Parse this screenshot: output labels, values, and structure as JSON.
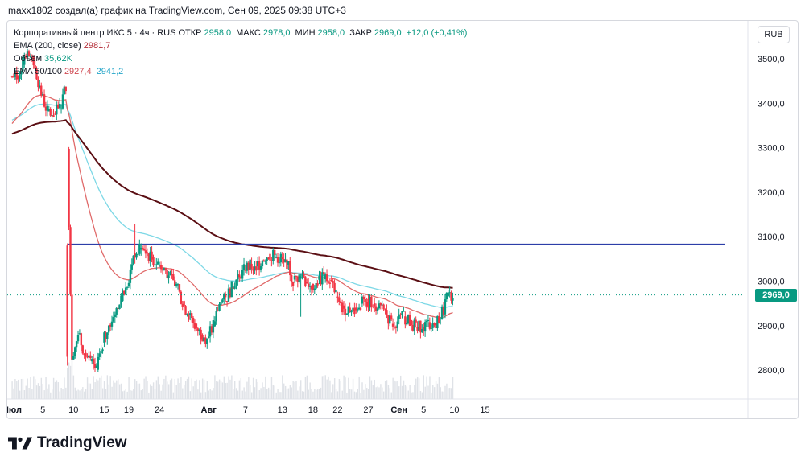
{
  "caption": "maxx1802 создал(а) график на TradingView.com, Сен 09, 2025 09:38 UTC+3",
  "legend": {
    "symbol": "Корпоративный центр ИКС 5 · 4ч · RUS",
    "open_label": "ОТКР",
    "open_value": "2958,0",
    "high_label": "МАКС",
    "high_value": "2978,0",
    "low_label": "МИН",
    "low_value": "2958,0",
    "close_label": "ЗАКР",
    "close_value": "2969,0",
    "change_value": "+12,0 (+0,41%)",
    "ema200_label": "EMA (200, close)",
    "ema200_value": "2981,7",
    "volume_label": "Объём",
    "volume_value": "35,62K",
    "ema50_100_label": "EMA 50/100",
    "ema50_value": "2927,4",
    "ema100_value": "2941,2"
  },
  "currency": "RUB",
  "last_price_label": "2969,0",
  "brand": {
    "name": "TradingView",
    "logo_icon": "tradingview-logo-icon"
  },
  "colors": {
    "up": "#089981",
    "down": "#f23645",
    "ema200": "#5b0f14",
    "ema50": "#e06a6a",
    "ema100": "#7dd8e6",
    "hline": "#2d3ea8",
    "volume": "#dfe2e7"
  },
  "chart_data": {
    "type": "candlestick",
    "timeframe": "4h",
    "x_ticks": [
      "Июл",
      "5",
      "10",
      "15",
      "19",
      "24",
      "Авг",
      "7",
      "13",
      "18",
      "22",
      "27",
      "Сен",
      "5",
      "10",
      "15"
    ],
    "y_ticks": [
      "3500,0",
      "3400,0",
      "3300,0",
      "3200,0",
      "3100,0",
      "3000,0",
      "2900,0",
      "2800,0"
    ],
    "ylim": [
      2735,
      3585
    ],
    "horizontal_line": 3083,
    "last_price": 2969.0,
    "close_series": [
      {
        "date": "2025-06-30",
        "close": 3460
      },
      {
        "date": "2025-07-01",
        "close": 3490
      },
      {
        "date": "2025-07-02",
        "close": 3505
      },
      {
        "date": "2025-07-03",
        "close": 3480
      },
      {
        "date": "2025-07-04",
        "close": 3420
      },
      {
        "date": "2025-07-05",
        "close": 3380
      },
      {
        "date": "2025-07-06",
        "close": 3375
      },
      {
        "date": "2025-07-07",
        "close": 3390
      },
      {
        "date": "2025-07-08",
        "close": 3440
      },
      {
        "date": "2025-07-09",
        "close": 2830
      },
      {
        "date": "2025-07-10",
        "close": 2880
      },
      {
        "date": "2025-07-11",
        "close": 2840
      },
      {
        "date": "2025-07-12",
        "close": 2815
      },
      {
        "date": "2025-07-13",
        "close": 2800
      },
      {
        "date": "2025-07-14",
        "close": 2860
      },
      {
        "date": "2025-07-15",
        "close": 2900
      },
      {
        "date": "2025-07-16",
        "close": 2930
      },
      {
        "date": "2025-07-17",
        "close": 2960
      },
      {
        "date": "2025-07-18",
        "close": 2985
      },
      {
        "date": "2025-07-19",
        "close": 3060
      },
      {
        "date": "2025-07-20",
        "close": 3075
      },
      {
        "date": "2025-07-21",
        "close": 3065
      },
      {
        "date": "2025-07-22",
        "close": 3050
      },
      {
        "date": "2025-07-23",
        "close": 3040
      },
      {
        "date": "2025-07-24",
        "close": 3030
      },
      {
        "date": "2025-07-25",
        "close": 3010
      },
      {
        "date": "2025-07-26",
        "close": 2990
      },
      {
        "date": "2025-07-27",
        "close": 2950
      },
      {
        "date": "2025-07-28",
        "close": 2925
      },
      {
        "date": "2025-07-29",
        "close": 2900
      },
      {
        "date": "2025-07-30",
        "close": 2880
      },
      {
        "date": "2025-07-31",
        "close": 2870
      },
      {
        "date": "2025-08-01",
        "close": 2900
      },
      {
        "date": "2025-08-02",
        "close": 2950
      },
      {
        "date": "2025-08-03",
        "close": 2960
      },
      {
        "date": "2025-08-04",
        "close": 2985
      },
      {
        "date": "2025-08-05",
        "close": 3010
      },
      {
        "date": "2025-08-06",
        "close": 3030
      },
      {
        "date": "2025-08-07",
        "close": 3035
      },
      {
        "date": "2025-08-08",
        "close": 3030
      },
      {
        "date": "2025-08-09",
        "close": 3050
      },
      {
        "date": "2025-08-10",
        "close": 3060
      },
      {
        "date": "2025-08-11",
        "close": 3055
      },
      {
        "date": "2025-08-12",
        "close": 3050
      },
      {
        "date": "2025-08-13",
        "close": 3040
      },
      {
        "date": "2025-08-14",
        "close": 3000
      },
      {
        "date": "2025-08-15",
        "close": 3010
      },
      {
        "date": "2025-08-16",
        "close": 3000
      },
      {
        "date": "2025-08-17",
        "close": 2990
      },
      {
        "date": "2025-08-18",
        "close": 3000
      },
      {
        "date": "2025-08-19",
        "close": 3010
      },
      {
        "date": "2025-08-20",
        "close": 3000
      },
      {
        "date": "2025-08-21",
        "close": 2970
      },
      {
        "date": "2025-08-22",
        "close": 2940
      },
      {
        "date": "2025-08-23",
        "close": 2935
      },
      {
        "date": "2025-08-24",
        "close": 2940
      },
      {
        "date": "2025-08-25",
        "close": 2950
      },
      {
        "date": "2025-08-26",
        "close": 2955
      },
      {
        "date": "2025-08-27",
        "close": 2950
      },
      {
        "date": "2025-08-28",
        "close": 2945
      },
      {
        "date": "2025-08-29",
        "close": 2930
      },
      {
        "date": "2025-08-30",
        "close": 2905
      },
      {
        "date": "2025-08-31",
        "close": 2910
      },
      {
        "date": "2025-09-01",
        "close": 2920
      },
      {
        "date": "2025-09-02",
        "close": 2910
      },
      {
        "date": "2025-09-03",
        "close": 2895
      },
      {
        "date": "2025-09-04",
        "close": 2900
      },
      {
        "date": "2025-09-05",
        "close": 2905
      },
      {
        "date": "2025-09-06",
        "close": 2905
      },
      {
        "date": "2025-09-07",
        "close": 2920
      },
      {
        "date": "2025-09-08",
        "close": 2960
      },
      {
        "date": "2025-09-09",
        "close": 2969
      }
    ]
  }
}
